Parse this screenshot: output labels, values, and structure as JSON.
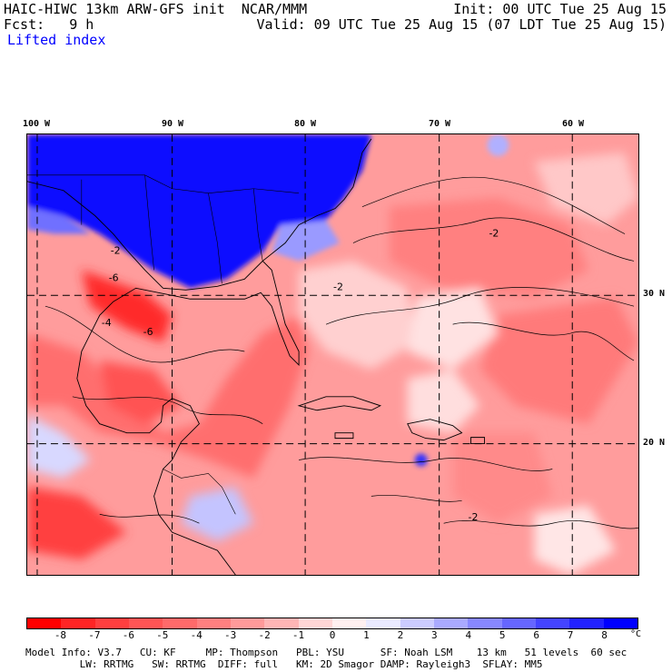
{
  "header": {
    "model_title": "HAIC-HIWC 13km ARW-GFS init  NCAR/MMM",
    "forecast": "Fcst:   9 h",
    "field": "Lifted index",
    "init": "Init: 00 UTC Tue 25 Aug 15",
    "valid": "Valid: 09 UTC Tue 25 Aug 15 (07 LDT Tue 25 Aug 15)"
  },
  "map": {
    "lon_labels": [
      "100 W",
      "90 W",
      "80 W",
      "70 W",
      "60 W"
    ],
    "lat_labels": [
      "30 N",
      "20 N"
    ],
    "contour_labels": [
      "-2",
      "-4",
      "-6"
    ]
  },
  "colorbar": {
    "ticks": [
      "-8",
      "-7",
      "-6",
      "-5",
      "-4",
      "-3",
      "-2",
      "-1",
      "0",
      "1",
      "2",
      "3",
      "4",
      "5",
      "6",
      "7",
      "8"
    ],
    "unit": "°C",
    "colors": [
      "#ff0000",
      "#ff2525",
      "#ff3f3f",
      "#ff5555",
      "#ff6a6a",
      "#ff8080",
      "#ff9a9a",
      "#ffb6b6",
      "#ffd6d6",
      "#fff0f0",
      "#eaeaff",
      "#ccccff",
      "#aaaaff",
      "#8888ff",
      "#6666ff",
      "#4444ff",
      "#2222ff",
      "#0000ff"
    ]
  },
  "footer": {
    "line1": "Model Info: V3.7   CU: KF     MP: Thompson   PBL: YSU      SF: Noah LSM    13 km   51 levels  60 sec",
    "line2": "         LW: RRTMG   SW: RRTMG  DIFF: full   KM: 2D Smagor DAMP: Rayleigh3  SFLAY: MM5"
  }
}
